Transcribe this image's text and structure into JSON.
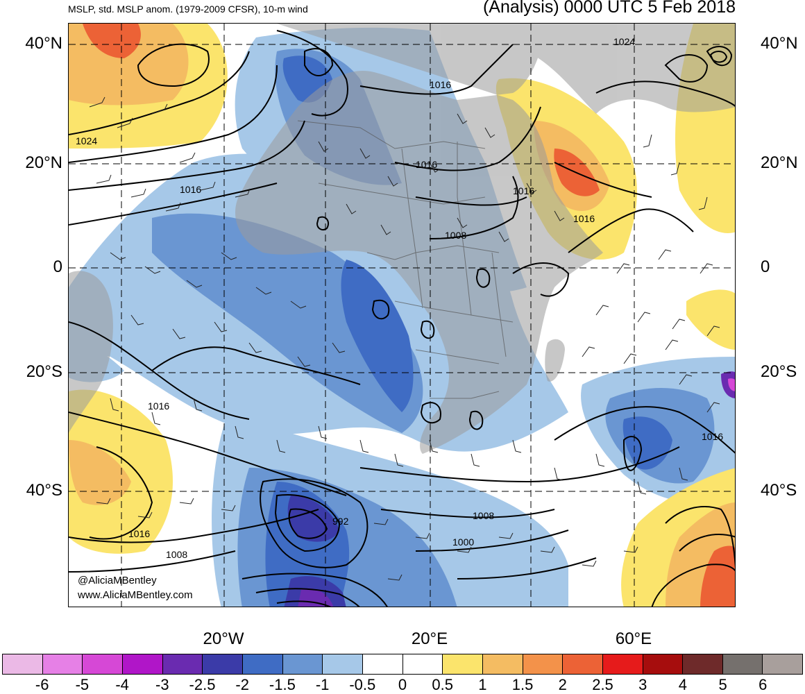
{
  "header": {
    "left": "MSLP, std. MSLP anom. (1979-2009 CFSR), 10-m wind",
    "right": "(Analysis) 0000 UTC 5 Feb 2018"
  },
  "latitude_labels": [
    "40°N",
    "20°N",
    "0",
    "20°S",
    "40°S"
  ],
  "longitude_labels": [
    "20°W",
    "20°E",
    "60°E"
  ],
  "isobar_labels": [
    "1024",
    "1016",
    "1016",
    "1016",
    "1008",
    "1016",
    "1024",
    "1016",
    "1016",
    "1016",
    "1008",
    "1008",
    "1000",
    "992",
    "1016"
  ],
  "credits": {
    "twitter": "@AliciaMBentley",
    "website": "www.AliciaMBentley.com"
  },
  "colorbar": {
    "labels": [
      "-6",
      "-5",
      "-4",
      "-3",
      "-2.5",
      "-2",
      "-1.5",
      "-1",
      "-0.5",
      "0",
      "0.5",
      "1",
      "1.5",
      "2",
      "2.5",
      "3",
      "4",
      "5",
      "6"
    ],
    "colors": [
      "#ebb9e6",
      "#e680e6",
      "#d648d6",
      "#b016c8",
      "#6a2bb0",
      "#3b3ba8",
      "#3f6cc4",
      "#6a96d2",
      "#a6c8e8",
      "#ffffff",
      "#ffffff",
      "#fbe46c",
      "#f4bc62",
      "#f3924a",
      "#ec6236",
      "#e61b1b",
      "#a60d0d",
      "#6e2a2a",
      "#75706d",
      "#a89f9c"
    ]
  }
}
